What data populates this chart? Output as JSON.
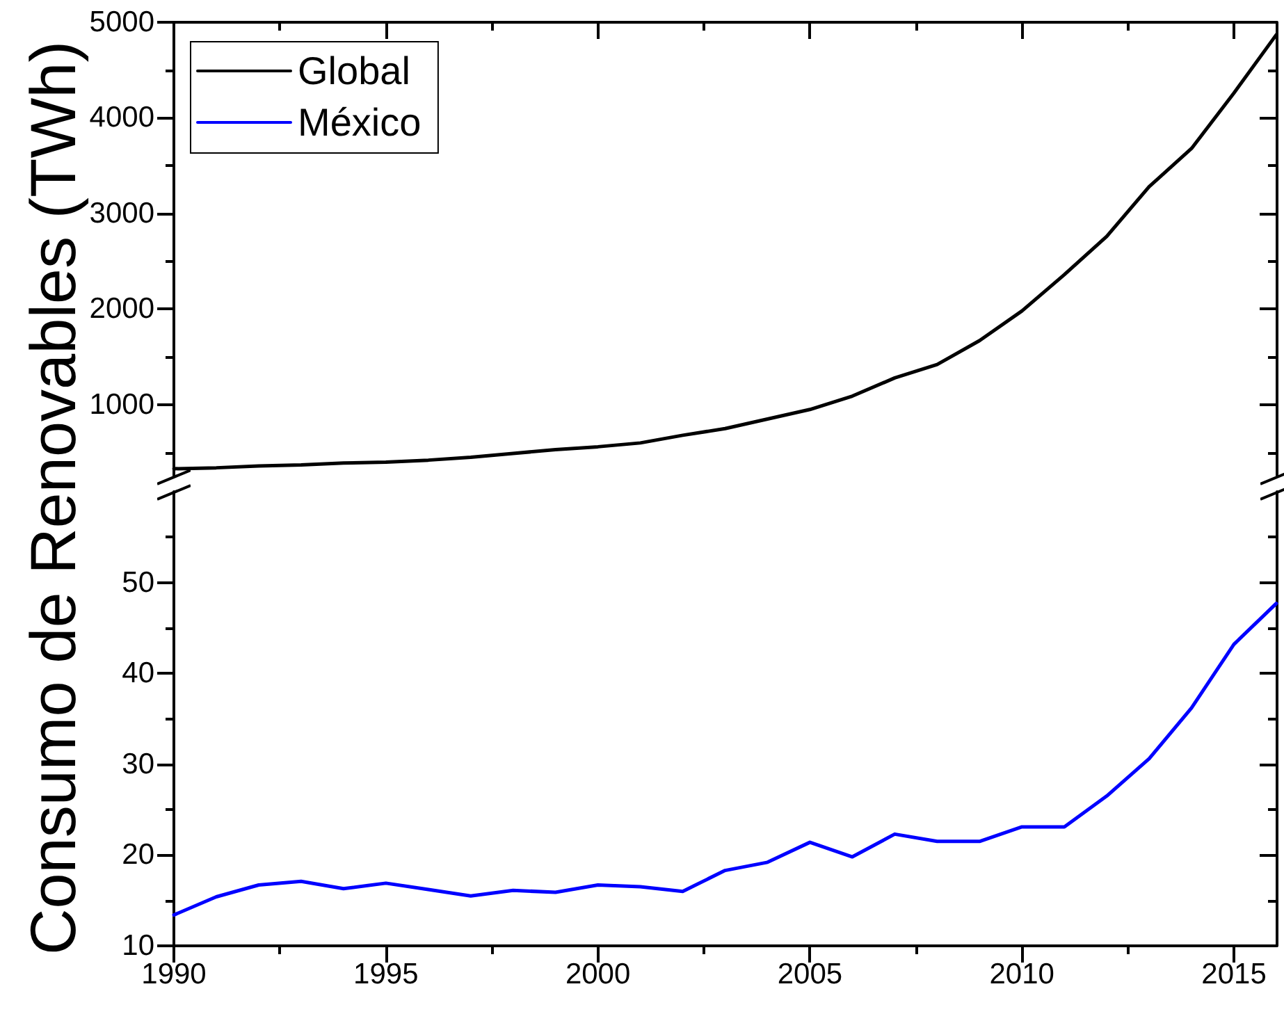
{
  "chart_data": [
    {
      "type": "line",
      "x": [
        1990,
        1991,
        1992,
        1993,
        1994,
        1995,
        1996,
        1997,
        1998,
        1999,
        2000,
        2001,
        2002,
        2003,
        2004,
        2005,
        2006,
        2007,
        2008,
        2009,
        2010,
        2011,
        2012,
        2013,
        2014,
        2015,
        2016
      ],
      "series": [
        {
          "name": "Global",
          "color": "#000000",
          "values": [
            330,
            340,
            360,
            370,
            390,
            400,
            420,
            450,
            490,
            530,
            560,
            600,
            680,
            750,
            850,
            950,
            1090,
            1280,
            1420,
            1670,
            1980,
            2360,
            2760,
            3280,
            3680,
            4260,
            4870
          ]
        }
      ],
      "xlim": [
        1990,
        2016
      ],
      "xticks": [
        1990,
        {
          "value": 1992.5,
          "label": null
        },
        1995,
        {
          "value": 1997.5,
          "label": null
        },
        2000,
        {
          "value": 2002.5,
          "label": null
        },
        2005,
        {
          "value": 2007.5,
          "label": null
        },
        2010,
        {
          "value": 2012.5,
          "label": null
        },
        2015
      ],
      "ylim": [
        250,
        5000
      ],
      "yticks": [
        {
          "value": 500,
          "label": null
        },
        1000,
        {
          "value": 1500,
          "label": null
        },
        2000,
        {
          "value": 2500,
          "label": null
        },
        3000,
        {
          "value": 3500,
          "label": null
        },
        4000,
        {
          "value": 4500,
          "label": null
        },
        5000
      ],
      "tick_labels": "y",
      "legend": "top left",
      "grid": false
    },
    {
      "type": "line",
      "x": [
        1990,
        1991,
        1992,
        1993,
        1994,
        1995,
        1996,
        1997,
        1998,
        1999,
        2000,
        2001,
        2002,
        2003,
        2004,
        2005,
        2006,
        2007,
        2008,
        2009,
        2010,
        2011,
        2012,
        2013,
        2014,
        2015,
        2016
      ],
      "series": [
        {
          "name": "México",
          "color": "#0000ff",
          "values": [
            13.4,
            15.4,
            16.7,
            17.1,
            16.3,
            16.9,
            16.2,
            15.5,
            16.1,
            15.9,
            16.7,
            16.5,
            16.0,
            18.3,
            19.2,
            21.4,
            19.8,
            22.3,
            21.5,
            21.5,
            23.1,
            23.1,
            26.5,
            30.6,
            36.2,
            43.2,
            47.7
          ]
        }
      ],
      "xlim": [
        1990,
        2016
      ],
      "xticks": [
        1990,
        {
          "value": 1992.5,
          "label": null
        },
        1995,
        {
          "value": 1997.5,
          "label": null
        },
        2000,
        {
          "value": 2002.5,
          "label": null
        },
        2005,
        {
          "value": 2007.5,
          "label": null
        },
        2010,
        {
          "value": 2012.5,
          "label": null
        },
        2015
      ],
      "ylim": [
        10,
        60
      ],
      "yticks": [
        10,
        {
          "value": 15,
          "label": null
        },
        20,
        {
          "value": 25,
          "label": null
        },
        30,
        {
          "value": 35,
          "label": null
        },
        40,
        {
          "value": 45,
          "label": null
        },
        50,
        {
          "value": 55,
          "label": null
        }
      ],
      "ylabel": "Consumo de Renovables (TWh)",
      "legend": "top left",
      "grid": false
    }
  ]
}
